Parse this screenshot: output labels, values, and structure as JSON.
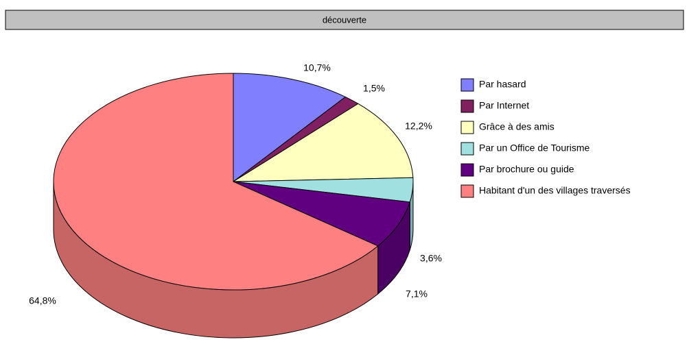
{
  "chart_data": {
    "type": "pie",
    "title": "découverte",
    "categories": [
      "Par hasard",
      "Par Internet",
      "Grâce à des amis",
      "Par un Office de Tourisme",
      "Par brochure ou guide",
      "Habitant d'un des villages traversés"
    ],
    "values": [
      10.7,
      1.5,
      12.2,
      3.6,
      7.1,
      64.8
    ],
    "value_labels": [
      "10,7%",
      "1,5%",
      "12,2%",
      "3,6%",
      "7,1%",
      "64,8%"
    ],
    "colors": [
      "#8080ff",
      "#802060",
      "#ffffc0",
      "#a0e0e0",
      "#600080",
      "#ff8080"
    ],
    "legend": "right"
  }
}
